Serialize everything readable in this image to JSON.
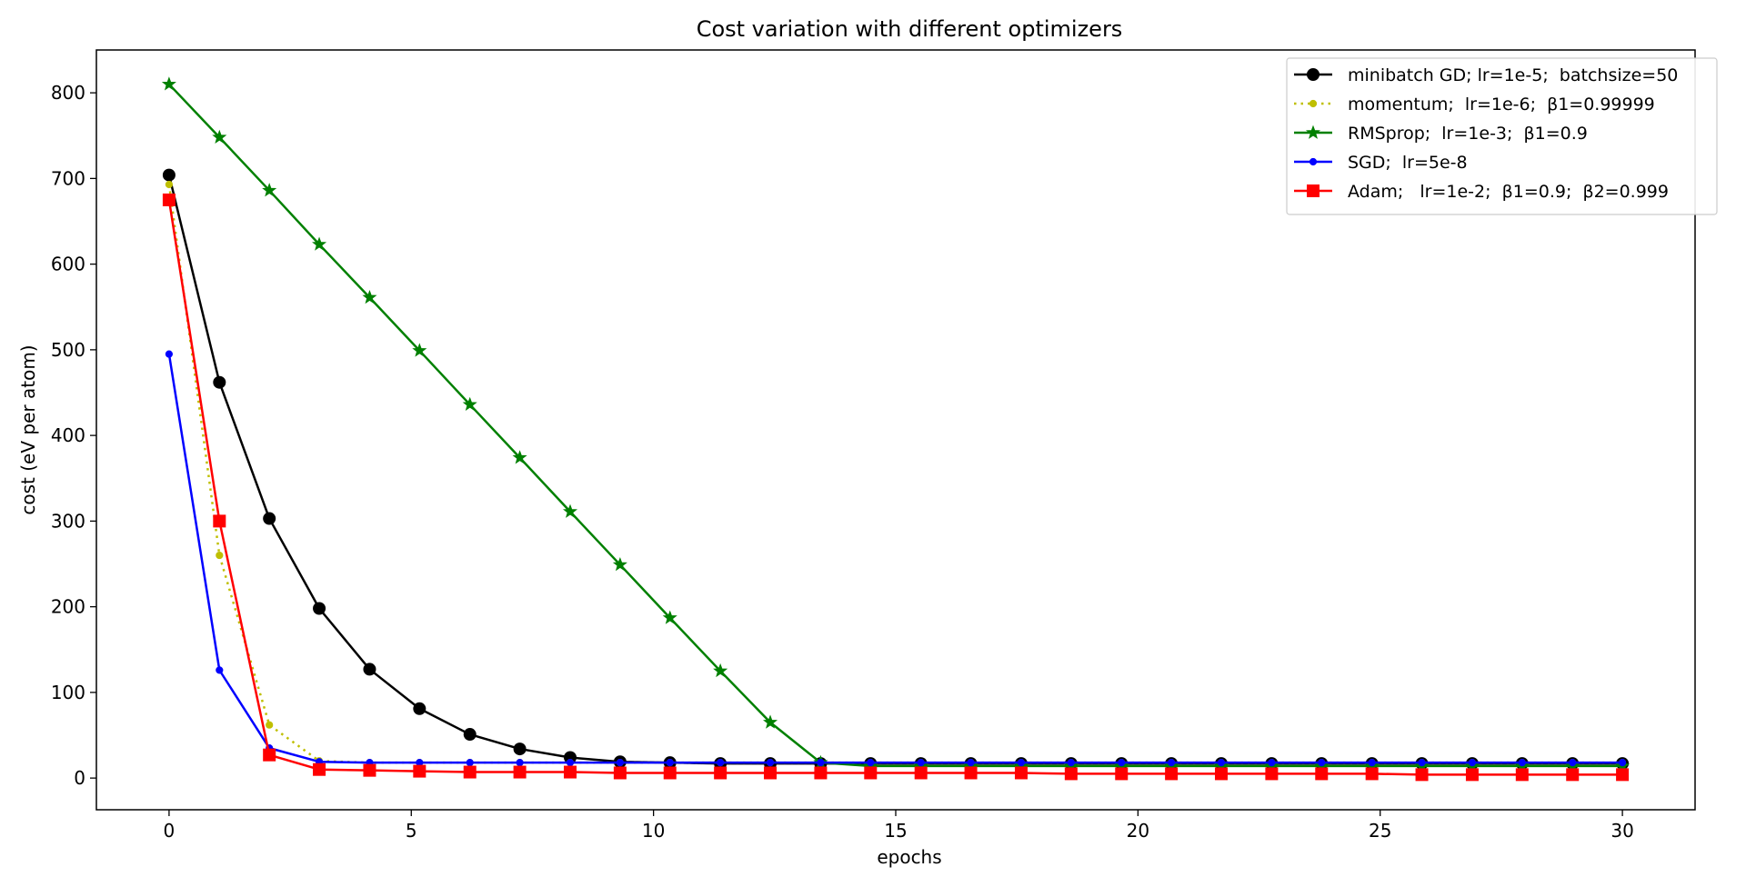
{
  "chart_data": {
    "type": "line",
    "title": "Cost variation with different optimizers",
    "xlabel": "epochs",
    "ylabel": "cost (eV per atom)",
    "xlim": [
      -1.5,
      31.5
    ],
    "ylim": [
      -37,
      850
    ],
    "xticks": [
      0,
      5,
      10,
      15,
      20,
      25,
      30
    ],
    "yticks": [
      0,
      100,
      200,
      300,
      400,
      500,
      600,
      700,
      800
    ],
    "x": [
      0,
      1.04,
      2.07,
      3.1,
      4.14,
      5.17,
      6.21,
      7.24,
      8.28,
      9.31,
      10.34,
      11.38,
      12.41,
      13.45,
      14.48,
      15.52,
      16.55,
      17.59,
      18.62,
      19.66,
      20.69,
      21.72,
      22.76,
      23.79,
      24.83,
      25.86,
      26.9,
      27.93,
      28.97,
      30
    ],
    "grid": false,
    "legend_position": "top-right",
    "series": [
      {
        "name": "minibatch GD; lr=1e-5;  batchsize=50",
        "color": "#000000",
        "marker": "circle",
        "linestyle": "solid",
        "values": [
          704,
          462,
          303,
          198,
          127,
          81,
          51,
          34,
          24,
          19,
          18,
          17,
          17,
          17,
          17,
          17,
          17,
          17,
          17,
          17,
          17,
          17,
          17,
          17,
          17,
          17,
          17,
          17,
          17,
          17
        ]
      },
      {
        "name": "momentum;  lr=1e-6;  β1=0.99999",
        "color": "#bfbf00",
        "marker": "dot",
        "linestyle": "dotted",
        "values": [
          693,
          260,
          62,
          20,
          18,
          18,
          18,
          18,
          18,
          18,
          18,
          18,
          18,
          18,
          18,
          18,
          18,
          18,
          18,
          18,
          18,
          18,
          18,
          18,
          18,
          18,
          18,
          18,
          18,
          18
        ]
      },
      {
        "name": "RMSprop;  lr=1e-3;  β1=0.9",
        "color": "#008000",
        "marker": "star",
        "linestyle": "solid",
        "values": [
          810,
          748,
          686,
          623,
          561,
          499,
          436,
          374,
          311,
          249,
          187,
          125,
          65,
          18,
          14,
          14,
          14,
          14,
          14,
          14,
          14,
          14,
          14,
          14,
          14,
          14,
          14,
          14,
          14,
          14
        ]
      },
      {
        "name": "SGD;  lr=5e-8",
        "color": "#0000ff",
        "marker": "dot",
        "linestyle": "solid",
        "values": [
          495,
          126,
          35,
          19,
          18,
          18,
          18,
          18,
          18,
          18,
          18,
          18,
          18,
          18,
          18,
          18,
          18,
          18,
          18,
          18,
          18,
          18,
          18,
          18,
          18,
          18,
          18,
          18,
          18,
          18
        ]
      },
      {
        "name": "Adam;   lr=1e-2;  β1=0.9;  β2=0.999",
        "color": "#ff0000",
        "marker": "square",
        "linestyle": "solid",
        "values": [
          675,
          300,
          27,
          10,
          9,
          8,
          7,
          7,
          7,
          6,
          6,
          6,
          6,
          6,
          6,
          6,
          6,
          6,
          5,
          5,
          5,
          5,
          5,
          5,
          5,
          4,
          4,
          4,
          4,
          4
        ]
      }
    ]
  }
}
